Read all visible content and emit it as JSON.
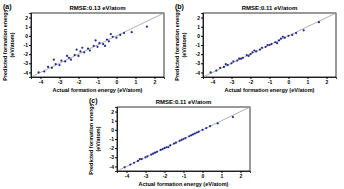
{
  "chart_data": [
    {
      "type": "scatter",
      "panel_label": "(a)",
      "title": "RMSE:0.13 eV/atom",
      "x_label": "Actual formation energy (eV/atom)",
      "y_label": [
        "Predicted formation energy",
        "(eV/atom)"
      ],
      "color": "#1f2a8c",
      "marker": "circle",
      "xlim": [
        -4.5,
        2.5
      ],
      "ylim": [
        -4.5,
        2.5
      ],
      "xticks": [
        -4,
        -3,
        -2,
        -1,
        0,
        1,
        2
      ],
      "yticks": [
        -4,
        -3,
        -2,
        -1,
        0,
        1,
        2
      ],
      "x": [
        -4.1,
        -3.8,
        -3.6,
        -3.4,
        -3.2,
        -3.0,
        -2.9,
        -2.7,
        -2.5,
        -2.4,
        -2.2,
        -2.0,
        -1.9,
        -1.7,
        -1.5,
        -1.4,
        -1.2,
        -1.0,
        -0.9,
        -0.7,
        -0.5,
        -0.4,
        -0.2,
        0.0,
        0.2,
        0.4,
        -3.3,
        -2.1,
        -1.1,
        -0.6,
        0.8,
        1.6,
        -2.6,
        -1.8,
        -0.3
      ],
      "y": [
        -4.0,
        -3.9,
        -3.4,
        -3.5,
        -3.1,
        -3.2,
        -2.7,
        -2.8,
        -2.4,
        -2.6,
        -2.1,
        -2.2,
        -1.7,
        -1.8,
        -1.4,
        -1.6,
        -1.1,
        -1.2,
        -0.8,
        -0.9,
        -0.4,
        -0.6,
        -0.1,
        -0.2,
        0.1,
        0.3,
        -2.6,
        -1.5,
        -0.5,
        -1.1,
        0.4,
        1.0,
        -2.2,
        -1.3,
        0.2
      ]
    },
    {
      "type": "scatter",
      "panel_label": "(b)",
      "title": "RMSE:0.11 eV/atom",
      "x_label": "Actual formation energy (eV/atom)",
      "y_label": [
        "Predicted formation energy",
        "(eV/atom)"
      ],
      "color": "#1f2a8c",
      "marker": "circle",
      "xlim": [
        -4.5,
        2.5
      ],
      "ylim": [
        -4.5,
        2.5
      ],
      "xticks": [
        -4,
        -3,
        -2,
        -1,
        0,
        1,
        2
      ],
      "yticks": [
        -4,
        -3,
        -2,
        -1,
        0,
        1,
        2
      ],
      "x": [
        -4.1,
        -3.8,
        -3.6,
        -3.4,
        -3.2,
        -3.0,
        -2.9,
        -2.7,
        -2.5,
        -2.4,
        -2.2,
        -2.0,
        -1.9,
        -1.7,
        -1.5,
        -1.4,
        -1.2,
        -1.0,
        -0.9,
        -0.7,
        -0.5,
        -0.4,
        -0.2,
        0.0,
        0.2,
        0.4,
        -3.3,
        -2.1,
        -1.1,
        -0.6,
        0.8,
        1.6,
        -2.6,
        -1.8,
        -0.3
      ],
      "y": [
        -4.0,
        -3.8,
        -3.5,
        -3.4,
        -3.2,
        -3.0,
        -2.8,
        -2.7,
        -2.5,
        -2.4,
        -2.1,
        -2.0,
        -1.8,
        -1.7,
        -1.5,
        -1.3,
        -1.2,
        -1.0,
        -0.9,
        -0.7,
        -0.5,
        -0.3,
        -0.2,
        0.0,
        0.1,
        0.3,
        -3.1,
        -2.2,
        -1.0,
        -0.8,
        0.6,
        1.5,
        -2.5,
        -1.6,
        -0.1
      ]
    },
    {
      "type": "scatter",
      "panel_label": "(c)",
      "title": "RMSE:0.11 eV/atom",
      "x_label": "Actual formation energy (eV/atom)",
      "y_label": [
        "Predicted formation energy",
        "(eV/atom)"
      ],
      "color": "#1f2a8c",
      "marker": "circle",
      "xlim": [
        -4.5,
        2.5
      ],
      "ylim": [
        -4.5,
        2.5
      ],
      "xticks": [
        -4,
        -3,
        -2,
        -1,
        0,
        1,
        2
      ],
      "yticks": [
        -4,
        -3,
        -2,
        -1,
        0,
        1,
        2
      ],
      "x": [
        -4.1,
        -3.8,
        -3.6,
        -3.4,
        -3.2,
        -3.0,
        -2.9,
        -2.7,
        -2.5,
        -2.4,
        -2.2,
        -2.0,
        -1.9,
        -1.7,
        -1.5,
        -1.4,
        -1.2,
        -1.0,
        -0.9,
        -0.7,
        -0.5,
        -0.4,
        -0.2,
        0.0,
        0.2,
        0.4,
        -3.3,
        -2.1,
        -1.1,
        -0.6,
        0.8,
        1.6,
        -2.6,
        -1.8,
        -0.3
      ],
      "y": [
        -4.1,
        -3.8,
        -3.6,
        -3.4,
        -3.2,
        -3.0,
        -2.9,
        -2.7,
        -2.5,
        -2.4,
        -2.2,
        -2.0,
        -1.9,
        -1.7,
        -1.5,
        -1.4,
        -1.2,
        -1.0,
        -0.9,
        -0.7,
        -0.5,
        -0.4,
        -0.2,
        0.0,
        0.2,
        0.4,
        -3.2,
        -2.1,
        -1.1,
        -0.6,
        0.7,
        1.4,
        -2.6,
        -1.9,
        -0.3
      ]
    }
  ]
}
